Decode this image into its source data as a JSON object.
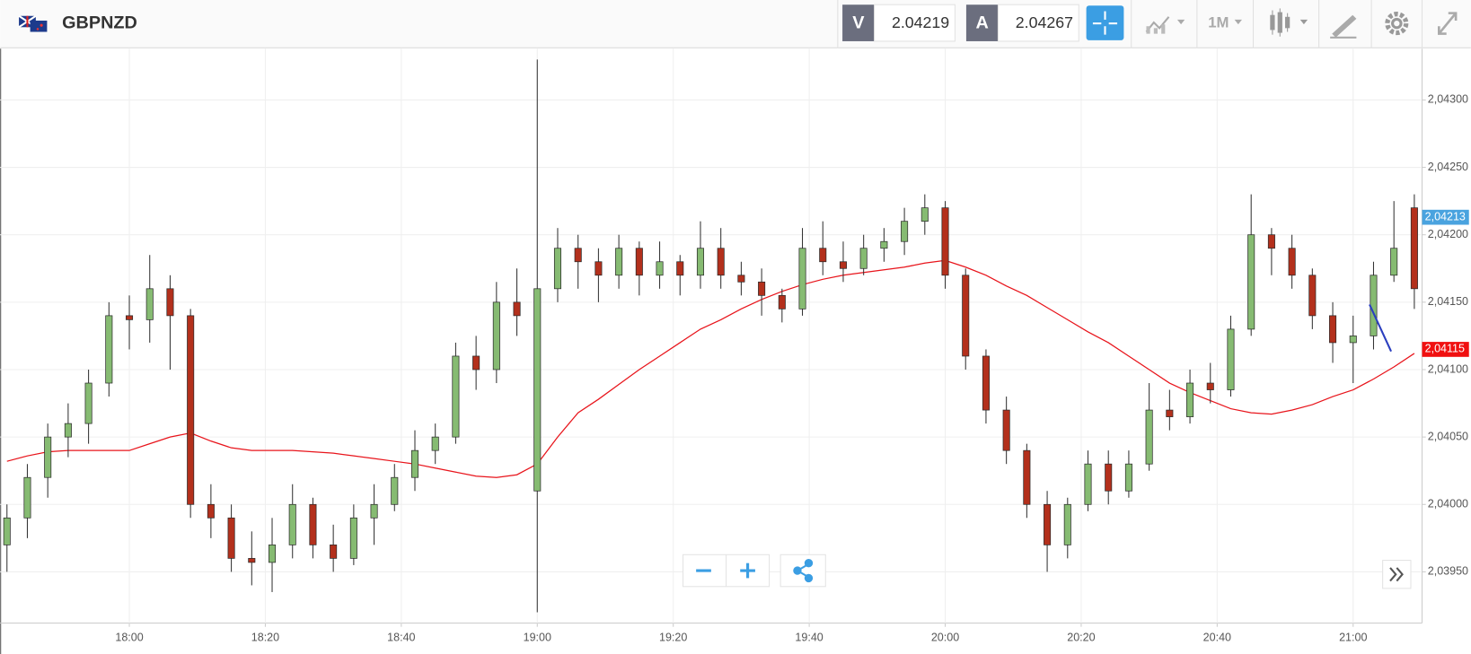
{
  "header": {
    "symbol": "GBPNZD",
    "bid_label": "V",
    "bid": 2.04219,
    "ask_label": "A",
    "ask": 2.04267,
    "timeframe": "1M"
  },
  "chart_data": {
    "type": "candlestick",
    "x": [
      "17:42",
      "17:45",
      "17:48",
      "17:51",
      "17:54",
      "17:57",
      "18:00",
      "18:03",
      "18:06",
      "18:09",
      "18:12",
      "18:15",
      "18:18",
      "18:21",
      "18:24",
      "18:27",
      "18:30",
      "18:33",
      "18:36",
      "18:39",
      "18:42",
      "18:45",
      "18:48",
      "18:51",
      "18:54",
      "18:57",
      "19:00",
      "19:03",
      "19:06",
      "19:09",
      "19:12",
      "19:15",
      "19:18",
      "19:21",
      "19:24",
      "19:27",
      "19:30",
      "19:33",
      "19:36",
      "19:39",
      "19:42",
      "19:45",
      "19:48",
      "19:51",
      "19:54",
      "19:57",
      "20:00",
      "20:03",
      "20:06",
      "20:09",
      "20:12",
      "20:15",
      "20:18",
      "20:21",
      "20:24",
      "20:27",
      "20:30",
      "20:33",
      "20:36",
      "20:39",
      "20:42",
      "20:45",
      "20:48",
      "20:51",
      "20:54",
      "20:57",
      "21:00",
      "21:03",
      "21:06",
      "21:09"
    ],
    "candles": [
      [
        2.0397,
        2.04,
        2.0395,
        2.0399
      ],
      [
        2.0399,
        2.0403,
        2.03975,
        2.0402
      ],
      [
        2.0402,
        2.0406,
        2.04005,
        2.0405
      ],
      [
        2.0405,
        2.04075,
        2.04035,
        2.0406
      ],
      [
        2.0406,
        2.041,
        2.04045,
        2.0409
      ],
      [
        2.0409,
        2.0415,
        2.0408,
        2.0414
      ],
      [
        2.0414,
        2.04155,
        2.04115,
        2.04137
      ],
      [
        2.04137,
        2.04185,
        2.0412,
        2.0416
      ],
      [
        2.0416,
        2.0417,
        2.041,
        2.0414
      ],
      [
        2.0414,
        2.04145,
        2.0399,
        2.04
      ],
      [
        2.04,
        2.04015,
        2.03975,
        2.0399
      ],
      [
        2.0399,
        2.04,
        2.0395,
        2.0396
      ],
      [
        2.0396,
        2.0398,
        2.0394,
        2.03957
      ],
      [
        2.03957,
        2.0399,
        2.03935,
        2.0397
      ],
      [
        2.0397,
        2.04015,
        2.0396,
        2.04
      ],
      [
        2.04,
        2.04005,
        2.0396,
        2.0397
      ],
      [
        2.0397,
        2.03985,
        2.0395,
        2.0396
      ],
      [
        2.0396,
        2.04,
        2.03955,
        2.0399
      ],
      [
        2.0399,
        2.04015,
        2.0397,
        2.04
      ],
      [
        2.04,
        2.0403,
        2.03995,
        2.0402
      ],
      [
        2.0402,
        2.04055,
        2.0401,
        2.0404
      ],
      [
        2.0404,
        2.0406,
        2.0403,
        2.0405
      ],
      [
        2.0405,
        2.0412,
        2.04045,
        2.0411
      ],
      [
        2.0411,
        2.04125,
        2.04085,
        2.041
      ],
      [
        2.041,
        2.04165,
        2.0409,
        2.0415
      ],
      [
        2.0415,
        2.04175,
        2.04125,
        2.0414
      ],
      [
        2.0401,
        2.0433,
        2.0392,
        2.0416
      ],
      [
        2.0416,
        2.04205,
        2.0415,
        2.0419
      ],
      [
        2.0419,
        2.042,
        2.0416,
        2.0418
      ],
      [
        2.0418,
        2.0419,
        2.0415,
        2.0417
      ],
      [
        2.0417,
        2.042,
        2.0416,
        2.0419
      ],
      [
        2.0419,
        2.04195,
        2.04155,
        2.0417
      ],
      [
        2.0417,
        2.04195,
        2.0416,
        2.0418
      ],
      [
        2.0418,
        2.04185,
        2.04155,
        2.0417
      ],
      [
        2.0417,
        2.0421,
        2.0416,
        2.0419
      ],
      [
        2.0419,
        2.04205,
        2.0416,
        2.0417
      ],
      [
        2.0417,
        2.0418,
        2.04155,
        2.04165
      ],
      [
        2.04165,
        2.04175,
        2.0414,
        2.04155
      ],
      [
        2.04155,
        2.0416,
        2.04135,
        2.04145
      ],
      [
        2.04145,
        2.04205,
        2.0414,
        2.0419
      ],
      [
        2.0419,
        2.0421,
        2.0417,
        2.0418
      ],
      [
        2.0418,
        2.04195,
        2.04165,
        2.04175
      ],
      [
        2.04175,
        2.042,
        2.0417,
        2.0419
      ],
      [
        2.0419,
        2.04205,
        2.0418,
        2.04195
      ],
      [
        2.04195,
        2.0422,
        2.04185,
        2.0421
      ],
      [
        2.0421,
        2.0423,
        2.042,
        2.0422
      ],
      [
        2.0422,
        2.04225,
        2.0416,
        2.0417
      ],
      [
        2.0417,
        2.04175,
        2.041,
        2.0411
      ],
      [
        2.0411,
        2.04115,
        2.0406,
        2.0407
      ],
      [
        2.0407,
        2.0408,
        2.0403,
        2.0404
      ],
      [
        2.0404,
        2.04045,
        2.0399,
        2.04
      ],
      [
        2.04,
        2.0401,
        2.0395,
        2.0397
      ],
      [
        2.0397,
        2.04005,
        2.0396,
        2.04
      ],
      [
        2.04,
        2.0404,
        2.03995,
        2.0403
      ],
      [
        2.0403,
        2.0404,
        2.04,
        2.0401
      ],
      [
        2.0401,
        2.0404,
        2.04005,
        2.0403
      ],
      [
        2.0403,
        2.0409,
        2.04025,
        2.0407
      ],
      [
        2.0407,
        2.04085,
        2.04055,
        2.04065
      ],
      [
        2.04065,
        2.041,
        2.0406,
        2.0409
      ],
      [
        2.0409,
        2.04105,
        2.04075,
        2.04085
      ],
      [
        2.04085,
        2.0414,
        2.0408,
        2.0413
      ],
      [
        2.0413,
        2.0423,
        2.04125,
        2.042
      ],
      [
        2.042,
        2.04205,
        2.0417,
        2.0419
      ],
      [
        2.0419,
        2.042,
        2.0416,
        2.0417
      ],
      [
        2.0417,
        2.04175,
        2.0413,
        2.0414
      ],
      [
        2.0414,
        2.0415,
        2.04105,
        2.0412
      ],
      [
        2.0412,
        2.0414,
        2.0409,
        2.04125
      ],
      [
        2.04125,
        2.0418,
        2.04115,
        2.0417
      ],
      [
        2.0417,
        2.04225,
        2.04165,
        2.0419
      ],
      [
        2.0422,
        2.0423,
        2.04145,
        2.0416
      ]
    ],
    "ma": {
      "color": "#e8141b",
      "values": [
        2.04032,
        2.04036,
        2.04039,
        2.0404,
        2.0404,
        2.0404,
        2.0404,
        2.04045,
        2.0405,
        2.04053,
        2.04047,
        2.04042,
        2.0404,
        2.0404,
        2.0404,
        2.04039,
        2.04038,
        2.04036,
        2.04034,
        2.04032,
        2.0403,
        2.04027,
        2.04024,
        2.04021,
        2.0402,
        2.04022,
        2.0403,
        2.0405,
        2.04068,
        2.04078,
        2.04089,
        2.041,
        2.0411,
        2.0412,
        2.0413,
        2.04137,
        2.04145,
        2.04152,
        2.04158,
        2.04163,
        2.04167,
        2.0417,
        2.04172,
        2.04174,
        2.04176,
        2.04179,
        2.04181,
        2.04176,
        2.0417,
        2.04162,
        2.04155,
        2.04146,
        2.04137,
        2.04128,
        2.0412,
        2.0411,
        2.041,
        2.0409,
        2.04083,
        2.04077,
        2.04071,
        2.04068,
        2.04067,
        2.0407,
        2.04074,
        2.0408,
        2.04085,
        2.04093,
        2.04102,
        2.04112
      ]
    },
    "up_color": "#86bb72",
    "down_color": "#b3301c",
    "xlim": [
      "17:41",
      "21:10"
    ],
    "xticks": [
      "18:00",
      "18:20",
      "18:40",
      "19:00",
      "19:20",
      "19:40",
      "20:00",
      "20:20",
      "20:40",
      "21:00"
    ],
    "ylim": [
      2.03912,
      2.04338
    ],
    "yticks": [
      {
        "value": 2.0395,
        "label": "2,03950"
      },
      {
        "value": 2.04,
        "label": "2,04000"
      },
      {
        "value": 2.0405,
        "label": "2,04050"
      },
      {
        "value": 2.041,
        "label": "2,04100"
      },
      {
        "value": 2.0415,
        "label": "2,04150"
      },
      {
        "value": 2.042,
        "label": "2,04200"
      },
      {
        "value": 2.0425,
        "label": "2,04250"
      },
      {
        "value": 2.043,
        "label": "2,04300"
      }
    ],
    "price_tags": [
      {
        "value": 2.04213,
        "label": "2,04213",
        "color": "#4aa3df"
      },
      {
        "value": 2.04115,
        "label": "2,04115",
        "color": "#f01010"
      }
    ],
    "grid": true
  }
}
